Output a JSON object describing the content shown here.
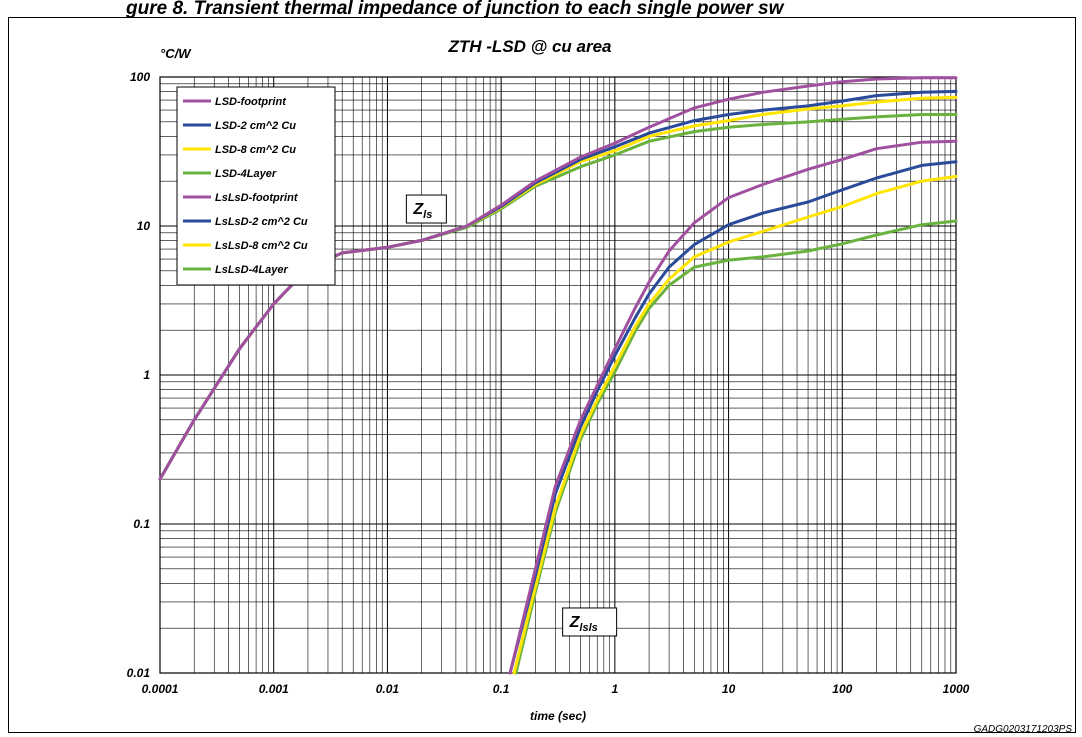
{
  "header": {
    "truncated_text": "gure 8. Transient thermal impedance of junction to each single power sw"
  },
  "footer": {
    "code": "GADG0203171203PS"
  },
  "chart_data": {
    "type": "line",
    "title": "ZTH -LSD @ cu area",
    "xlabel": "time (sec)",
    "ylabel": "°C/W",
    "xscale": "log",
    "yscale": "log",
    "xlim": [
      0.0001,
      1000
    ],
    "ylim": [
      0.01,
      100
    ],
    "grid": true,
    "legend_position": "top-left",
    "x_ticks": [
      "0.0001",
      "0.001",
      "0.01",
      "0.1",
      "1",
      "10",
      "100",
      "1000"
    ],
    "y_ticks": [
      "0.01",
      "0.1",
      "1",
      "10",
      "100"
    ],
    "annotations": [
      {
        "main": "Z",
        "sub": "ls",
        "x": 0.022,
        "y": 13
      },
      {
        "main": "Z",
        "sub": "lsls",
        "x": 0.6,
        "y": 0.022
      }
    ],
    "series": [
      {
        "name": "LSD-footprint",
        "color": "#a0509f",
        "points": [
          [
            0.0001,
            0.2
          ],
          [
            0.0002,
            0.5
          ],
          [
            0.0005,
            1.5
          ],
          [
            0.001,
            3.0
          ],
          [
            0.002,
            5.2
          ],
          [
            0.004,
            6.6
          ],
          [
            0.01,
            7.2
          ],
          [
            0.02,
            8.0
          ],
          [
            0.05,
            10.0
          ],
          [
            0.1,
            13.8
          ],
          [
            0.2,
            20
          ],
          [
            0.5,
            29
          ],
          [
            1,
            36
          ],
          [
            2,
            46
          ],
          [
            5,
            62
          ],
          [
            10,
            71
          ],
          [
            20,
            79
          ],
          [
            50,
            87
          ],
          [
            100,
            93
          ],
          [
            200,
            97
          ],
          [
            500,
            99
          ],
          [
            1000,
            99
          ]
        ]
      },
      {
        "name": "LSD-2 cm^2 Cu",
        "color": "#2a4a9a",
        "points": [
          [
            0.0001,
            0.2
          ],
          [
            0.0002,
            0.5
          ],
          [
            0.0005,
            1.5
          ],
          [
            0.001,
            3.0
          ],
          [
            0.002,
            5.2
          ],
          [
            0.004,
            6.6
          ],
          [
            0.01,
            7.2
          ],
          [
            0.02,
            8.0
          ],
          [
            0.05,
            10.0
          ],
          [
            0.1,
            13.5
          ],
          [
            0.2,
            19.5
          ],
          [
            0.5,
            28
          ],
          [
            1,
            34
          ],
          [
            2,
            42
          ],
          [
            5,
            51
          ],
          [
            10,
            56
          ],
          [
            20,
            60
          ],
          [
            50,
            64
          ],
          [
            100,
            69
          ],
          [
            200,
            75
          ],
          [
            500,
            79
          ],
          [
            1000,
            80
          ]
        ]
      },
      {
        "name": "LSD-8 cm^2 Cu",
        "color": "#ffe500",
        "points": [
          [
            0.0001,
            0.2
          ],
          [
            0.0002,
            0.5
          ],
          [
            0.0005,
            1.5
          ],
          [
            0.001,
            3.0
          ],
          [
            0.002,
            5.2
          ],
          [
            0.004,
            6.6
          ],
          [
            0.01,
            7.2
          ],
          [
            0.02,
            8.0
          ],
          [
            0.05,
            10.0
          ],
          [
            0.1,
            13.3
          ],
          [
            0.2,
            19
          ],
          [
            0.5,
            27
          ],
          [
            1,
            32
          ],
          [
            2,
            40
          ],
          [
            5,
            47
          ],
          [
            10,
            51
          ],
          [
            20,
            56
          ],
          [
            50,
            61
          ],
          [
            100,
            64
          ],
          [
            200,
            68
          ],
          [
            500,
            72
          ],
          [
            1000,
            73
          ]
        ]
      },
      {
        "name": "LSD-4Layer",
        "color": "#6ab23e",
        "points": [
          [
            0.0001,
            0.2
          ],
          [
            0.0002,
            0.5
          ],
          [
            0.0005,
            1.5
          ],
          [
            0.001,
            3.0
          ],
          [
            0.002,
            5.2
          ],
          [
            0.004,
            6.6
          ],
          [
            0.01,
            7.2
          ],
          [
            0.02,
            8.0
          ],
          [
            0.05,
            9.8
          ],
          [
            0.1,
            13.0
          ],
          [
            0.2,
            18.5
          ],
          [
            0.5,
            25
          ],
          [
            1,
            30
          ],
          [
            2,
            37
          ],
          [
            5,
            43
          ],
          [
            10,
            46
          ],
          [
            20,
            48
          ],
          [
            50,
            50
          ],
          [
            100,
            52
          ],
          [
            200,
            54
          ],
          [
            500,
            56
          ],
          [
            1000,
            56
          ]
        ]
      },
      {
        "name": "LsLsD-footprint",
        "color": "#a0509f",
        "points": [
          [
            0.12,
            0.01
          ],
          [
            0.2,
            0.05
          ],
          [
            0.3,
            0.18
          ],
          [
            0.5,
            0.5
          ],
          [
            0.7,
            0.85
          ],
          [
            1,
            1.5
          ],
          [
            1.5,
            2.8
          ],
          [
            2,
            4.2
          ],
          [
            3,
            6.8
          ],
          [
            5,
            10.5
          ],
          [
            10,
            15.5
          ],
          [
            20,
            19
          ],
          [
            50,
            24
          ],
          [
            100,
            28
          ],
          [
            200,
            33
          ],
          [
            500,
            36.5
          ],
          [
            1000,
            37
          ]
        ]
      },
      {
        "name": "LsLsD-2 cm^2 Cu",
        "color": "#2a4a9a",
        "points": [
          [
            0.12,
            0.01
          ],
          [
            0.2,
            0.045
          ],
          [
            0.3,
            0.16
          ],
          [
            0.5,
            0.45
          ],
          [
            0.7,
            0.78
          ],
          [
            1,
            1.35
          ],
          [
            1.5,
            2.4
          ],
          [
            2,
            3.5
          ],
          [
            3,
            5.3
          ],
          [
            5,
            7.5
          ],
          [
            10,
            10.2
          ],
          [
            20,
            12.2
          ],
          [
            50,
            14.5
          ],
          [
            100,
            17.5
          ],
          [
            200,
            21
          ],
          [
            500,
            25.5
          ],
          [
            1000,
            27
          ]
        ]
      },
      {
        "name": "LsLsD-8 cm^2 Cu",
        "color": "#ffe500",
        "points": [
          [
            0.13,
            0.01
          ],
          [
            0.2,
            0.038
          ],
          [
            0.3,
            0.13
          ],
          [
            0.5,
            0.4
          ],
          [
            0.7,
            0.68
          ],
          [
            1,
            1.15
          ],
          [
            1.5,
            2.1
          ],
          [
            2,
            3.0
          ],
          [
            3,
            4.4
          ],
          [
            5,
            6.2
          ],
          [
            10,
            7.8
          ],
          [
            20,
            9.2
          ],
          [
            50,
            11.5
          ],
          [
            100,
            13.5
          ],
          [
            200,
            16.5
          ],
          [
            500,
            20
          ],
          [
            1000,
            21.5
          ]
        ]
      },
      {
        "name": "LsLsD-4Layer",
        "color": "#6ab23e",
        "points": [
          [
            0.135,
            0.01
          ],
          [
            0.2,
            0.035
          ],
          [
            0.3,
            0.12
          ],
          [
            0.5,
            0.37
          ],
          [
            0.7,
            0.64
          ],
          [
            1,
            1.05
          ],
          [
            1.5,
            1.95
          ],
          [
            2,
            2.8
          ],
          [
            3,
            4.0
          ],
          [
            5,
            5.3
          ],
          [
            10,
            5.9
          ],
          [
            20,
            6.2
          ],
          [
            50,
            6.8
          ],
          [
            100,
            7.6
          ],
          [
            200,
            8.7
          ],
          [
            500,
            10.2
          ],
          [
            1000,
            10.8
          ]
        ]
      }
    ]
  }
}
